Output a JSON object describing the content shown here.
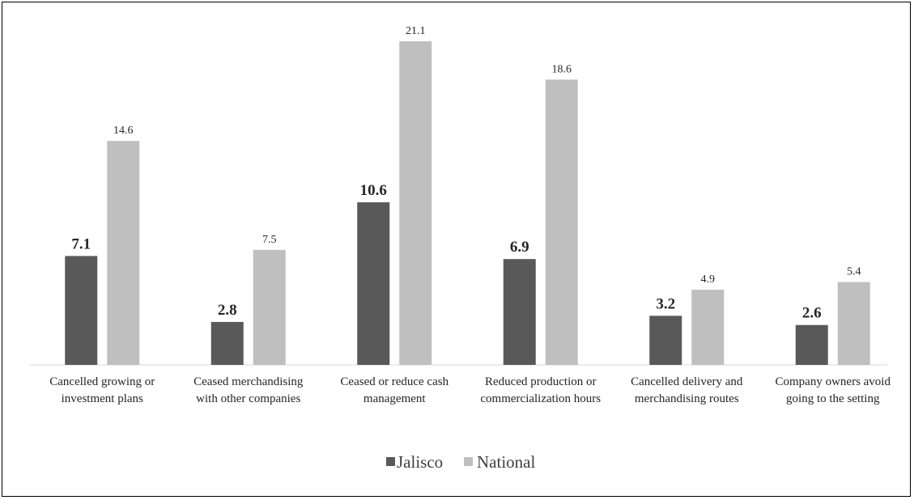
{
  "chart_data": {
    "type": "bar",
    "title": "",
    "xlabel": "",
    "ylabel": "",
    "ylim": [
      0,
      23
    ],
    "grid": false,
    "legend_position": "bottom-center",
    "categories": [
      [
        "Cancelled growing or",
        "investment plans"
      ],
      [
        "Ceased merchandising",
        "with other companies"
      ],
      [
        "Ceased or reduce cash",
        "management"
      ],
      [
        "Reduced production or",
        "commercialization hours"
      ],
      [
        "Cancelled delivery and",
        "merchandising routes"
      ],
      [
        "Company owners avoid",
        "going to the setting"
      ]
    ],
    "series": [
      {
        "name": "Jalisco",
        "color": "#595959",
        "values": [
          7.1,
          2.8,
          10.6,
          6.9,
          3.2,
          2.6
        ],
        "labels": [
          "7.1",
          "2.8",
          "10.6",
          "6.9",
          "3.2",
          "2.6"
        ]
      },
      {
        "name": "National",
        "color": "#bfbfbf",
        "values": [
          14.6,
          7.5,
          21.1,
          18.6,
          4.9,
          5.4
        ],
        "labels": [
          "14.6",
          "7.5",
          "21.1",
          "18.6",
          "4.9",
          "5.4"
        ]
      }
    ]
  }
}
